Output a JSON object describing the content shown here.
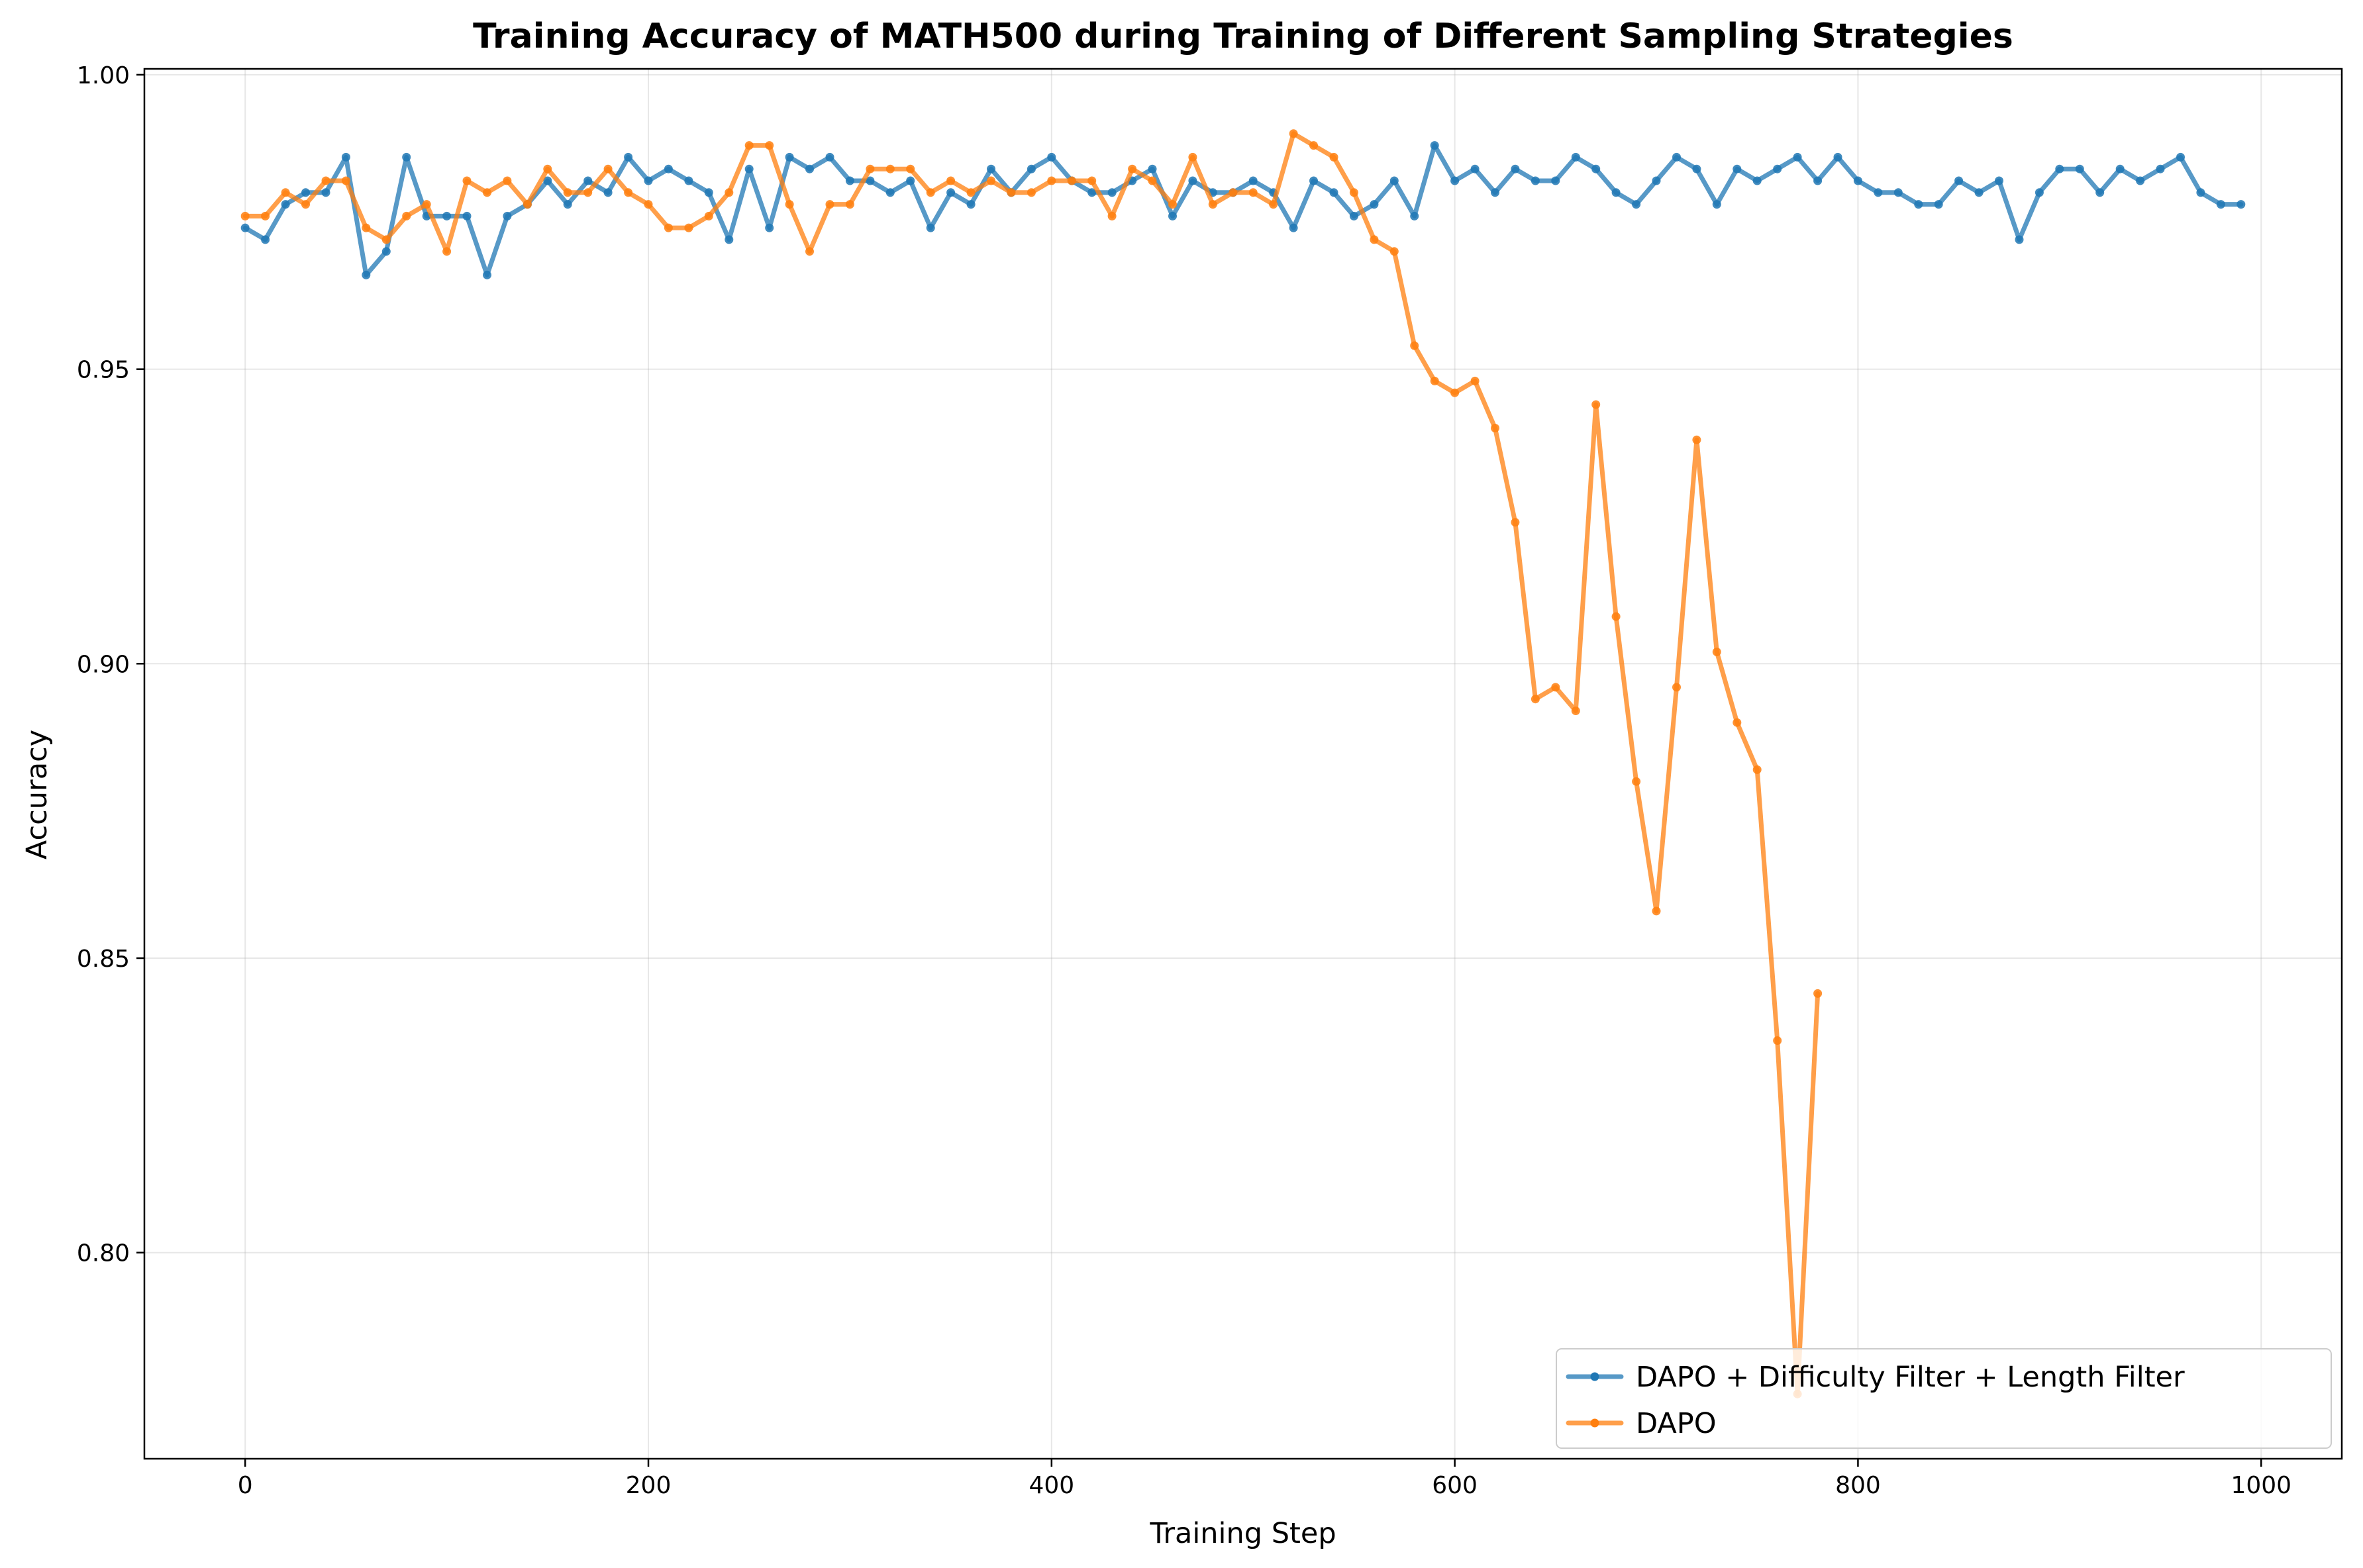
{
  "chart_data": {
    "type": "line",
    "title": "Training Accuracy of MATH500 during Training of Different Sampling Strategies",
    "xlabel": "Training Step",
    "ylabel": "Accuracy",
    "xlim": [
      -50,
      1040
    ],
    "ylim": [
      0.765,
      1.001
    ],
    "xticks": [
      0,
      200,
      400,
      600,
      800,
      1000
    ],
    "xtick_labels": [
      "0",
      "200",
      "400",
      "600",
      "800",
      "1000"
    ],
    "yticks": [
      0.8,
      0.85,
      0.9,
      0.95,
      1.0
    ],
    "ytick_labels": [
      "0.80",
      "0.85",
      "0.90",
      "0.95",
      "1.00"
    ],
    "grid": true,
    "legend_position": "bottom-right",
    "series": [
      {
        "name": "DAPO + Difficulty Filter + Length Filter",
        "color": "#1f77b4",
        "x": [
          0,
          10,
          20,
          30,
          40,
          50,
          60,
          70,
          80,
          90,
          100,
          110,
          120,
          130,
          140,
          150,
          160,
          170,
          180,
          190,
          200,
          210,
          220,
          230,
          240,
          250,
          260,
          270,
          280,
          290,
          300,
          310,
          320,
          330,
          340,
          350,
          360,
          370,
          380,
          390,
          400,
          410,
          420,
          430,
          440,
          450,
          460,
          470,
          480,
          490,
          500,
          510,
          520,
          530,
          540,
          550,
          560,
          570,
          580,
          590,
          600,
          610,
          620,
          630,
          640,
          650,
          660,
          670,
          680,
          690,
          700,
          710,
          720,
          730,
          740,
          750,
          760,
          770,
          780,
          790,
          800,
          810,
          820,
          830,
          840,
          850,
          860,
          870,
          880,
          890,
          900,
          910,
          920,
          930,
          940,
          950,
          960,
          970,
          980,
          990
        ],
        "y": [
          0.974,
          0.972,
          0.978,
          0.98,
          0.98,
          0.986,
          0.966,
          0.97,
          0.986,
          0.976,
          0.976,
          0.976,
          0.966,
          0.976,
          0.978,
          0.982,
          0.978,
          0.982,
          0.98,
          0.986,
          0.982,
          0.984,
          0.982,
          0.98,
          0.972,
          0.984,
          0.974,
          0.986,
          0.984,
          0.986,
          0.982,
          0.982,
          0.98,
          0.982,
          0.974,
          0.98,
          0.978,
          0.984,
          0.98,
          0.984,
          0.986,
          0.982,
          0.98,
          0.98,
          0.982,
          0.984,
          0.976,
          0.982,
          0.98,
          0.98,
          0.982,
          0.98,
          0.974,
          0.982,
          0.98,
          0.976,
          0.978,
          0.982,
          0.976,
          0.988,
          0.982,
          0.984,
          0.98,
          0.984,
          0.982,
          0.982,
          0.986,
          0.984,
          0.98,
          0.978,
          0.982,
          0.986,
          0.984,
          0.978,
          0.984,
          0.982,
          0.984,
          0.986,
          0.982,
          0.986,
          0.982,
          0.98,
          0.98,
          0.978,
          0.978,
          0.982,
          0.98,
          0.982,
          0.972,
          0.98,
          0.984,
          0.984,
          0.98,
          0.984,
          0.982,
          0.984,
          0.986,
          0.98,
          0.978,
          0.978
        ]
      },
      {
        "name": "DAPO",
        "color": "#ff7f0e",
        "x": [
          0,
          10,
          20,
          30,
          40,
          50,
          60,
          70,
          80,
          90,
          100,
          110,
          120,
          130,
          140,
          150,
          160,
          170,
          180,
          190,
          200,
          210,
          220,
          230,
          240,
          250,
          260,
          270,
          280,
          290,
          300,
          310,
          320,
          330,
          340,
          350,
          360,
          370,
          380,
          390,
          400,
          410,
          420,
          430,
          440,
          450,
          460,
          470,
          480,
          490,
          500,
          510,
          520,
          530,
          540,
          550,
          560,
          570,
          580,
          590,
          600,
          610,
          620,
          630,
          640,
          650,
          660,
          670,
          680,
          690,
          700,
          710,
          720,
          730,
          740,
          750,
          760,
          770,
          780
        ],
        "y": [
          0.976,
          0.976,
          0.98,
          0.978,
          0.982,
          0.982,
          0.974,
          0.972,
          0.976,
          0.978,
          0.97,
          0.982,
          0.98,
          0.982,
          0.978,
          0.984,
          0.98,
          0.98,
          0.984,
          0.98,
          0.978,
          0.974,
          0.974,
          0.976,
          0.98,
          0.988,
          0.988,
          0.978,
          0.97,
          0.978,
          0.978,
          0.984,
          0.984,
          0.984,
          0.98,
          0.982,
          0.98,
          0.982,
          0.98,
          0.98,
          0.982,
          0.982,
          0.982,
          0.976,
          0.984,
          0.982,
          0.978,
          0.986,
          0.978,
          0.98,
          0.98,
          0.978,
          0.99,
          0.988,
          0.986,
          0.98,
          0.972,
          0.97,
          0.954,
          0.948,
          0.946,
          0.948,
          0.94,
          0.924,
          0.894,
          0.896,
          0.892,
          0.944,
          0.908,
          0.88,
          0.858,
          0.896,
          0.938,
          0.902,
          0.89,
          0.882,
          0.836,
          0.776,
          0.844
        ]
      }
    ]
  }
}
